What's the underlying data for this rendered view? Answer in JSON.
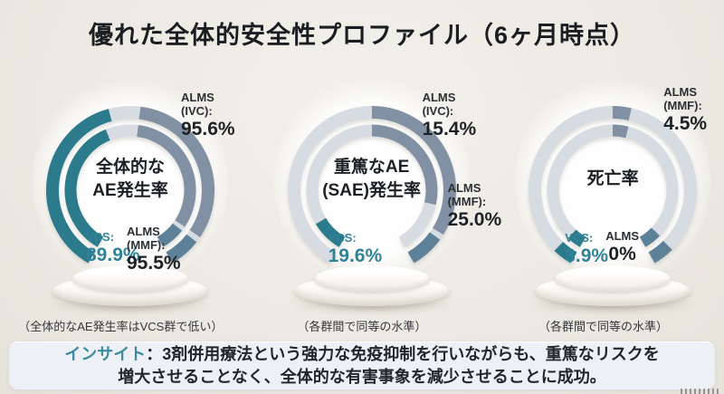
{
  "page": {
    "title": "優れた全体的安全性プロファイル（6ヶ月時点）",
    "background": "#edeae3"
  },
  "colors": {
    "teal": "#2c7b8c",
    "slate": "#8191a3",
    "steel": "#5e819a",
    "track": "#d7dbe2",
    "teal_text": "#2f8398",
    "dark_text": "#1d2126",
    "insight_bg": "#edf0f5"
  },
  "insight": {
    "label": "インサイト",
    "colon": "：",
    "line1": "3剤併用療法という強力な免疫抑制を行いながらも、重篤なリスクを",
    "line2": "増大させることなく、全体的な有害事象を減少させることに成功。"
  },
  "chart_data": [
    {
      "type": "gauge",
      "unit": "%",
      "gauge_span_deg": 300,
      "title": "全体的なAE発生率",
      "center_line1": "全体的な",
      "center_line2": "AE発生率",
      "caption": "（全体的なAE発生率はVCS群で低い）",
      "series": [
        {
          "name": "VCS",
          "value": 89.9
        },
        {
          "name": "ALMS (IVC)",
          "value": 95.6
        },
        {
          "name": "ALMS (MMF)",
          "value": 95.5
        }
      ],
      "labels": [
        {
          "slot": "s-tr",
          "name": "label-alms-ivc",
          "tone": "dark",
          "lines": [
            "ALMS (IVC):"
          ],
          "value": "95.6%"
        },
        {
          "slot": "s-bl",
          "name": "label-vcs",
          "tone": "teal",
          "lines": [
            "VCS:"
          ],
          "value": "89.9%"
        },
        {
          "slot": "s-bm",
          "name": "label-alms-mmf",
          "tone": "dark",
          "lines": [
            "ALMS",
            "(MMF):"
          ],
          "value": "95.5%"
        }
      ],
      "rings": {
        "outer": [
          {
            "from": -150,
            "to": -15,
            "color": "teal"
          },
          {
            "from": -15,
            "to": 7,
            "color": "track"
          },
          {
            "from": 7,
            "to": 124,
            "color": "slate"
          },
          {
            "from": 124,
            "to": 128,
            "color": "track"
          },
          {
            "from": 128,
            "to": 150,
            "color": "steel"
          }
        ],
        "inner": [
          {
            "from": -150,
            "to": -22,
            "color": "teal"
          },
          {
            "from": -22,
            "to": 7,
            "color": "track"
          },
          {
            "from": 7,
            "to": 124,
            "color": "slate"
          },
          {
            "from": 124,
            "to": 128,
            "color": "track"
          },
          {
            "from": 128,
            "to": 150,
            "color": "steel"
          }
        ]
      }
    },
    {
      "type": "gauge",
      "unit": "%",
      "gauge_span_deg": 300,
      "title": "重篤なAE（SAE）発生率",
      "center_line1": "重篤なAE",
      "center_line2": "(SAE)発生率",
      "caption": "（各群間で同等の水準）",
      "series": [
        {
          "name": "VCS",
          "value": 19.6
        },
        {
          "name": "ALMS (IVC)",
          "value": 15.4
        },
        {
          "name": "ALMS (MMF)",
          "value": 25.0
        }
      ],
      "labels": [
        {
          "slot": "s-tr",
          "name": "label-alms-ivc",
          "tone": "dark",
          "lines": [
            "ALMS (IVC):"
          ],
          "value": "15.4%"
        },
        {
          "slot": "s-ro",
          "name": "label-alms-mmf",
          "tone": "dark",
          "lines": [
            "ALMS",
            "(MMF):"
          ],
          "value": "25.0%"
        },
        {
          "slot": "s-bl",
          "name": "label-vcs",
          "tone": "teal",
          "lines": [
            "VCS:"
          ],
          "value": "19.6%"
        }
      ],
      "rings": {
        "outer": [
          {
            "from": -150,
            "to": 0,
            "color": "track"
          },
          {
            "from": 0,
            "to": 122,
            "color": "slate"
          },
          {
            "from": 122,
            "to": 126,
            "color": "track"
          },
          {
            "from": 126,
            "to": 150,
            "color": "steel"
          }
        ],
        "inner": [
          {
            "from": -150,
            "to": -121,
            "color": "teal"
          },
          {
            "from": -121,
            "to": 0,
            "color": "track"
          },
          {
            "from": 0,
            "to": 103,
            "color": "slate"
          },
          {
            "from": 103,
            "to": 150,
            "color": "track"
          }
        ]
      }
    },
    {
      "type": "gauge",
      "unit": "%",
      "gauge_span_deg": 300,
      "title": "死亡率",
      "center_line1": "死亡率",
      "caption": "（各群間で同等の水準）",
      "series": [
        {
          "name": "VCS",
          "value": 3.9
        },
        {
          "name": "ALMS (IVC)",
          "value": 0
        },
        {
          "name": "ALMS (MMF)",
          "value": 4.5
        }
      ],
      "labels": [
        {
          "slot": "s-tr",
          "name": "label-alms-mmf",
          "tone": "dark",
          "lines": [
            "ALMS",
            "(MMF):"
          ],
          "value": "4.5%"
        },
        {
          "slot": "s-bl",
          "name": "label-vcs",
          "tone": "teal",
          "lines": [
            "VCS:"
          ],
          "value": "3.9%"
        },
        {
          "slot": "s-bm",
          "name": "label-alms-ivc",
          "tone": "dark",
          "lines": [
            "ALMS"
          ],
          "value": "0%"
        }
      ],
      "rings": {
        "outer": [
          {
            "from": -150,
            "to": -136,
            "color": "teal"
          },
          {
            "from": -136,
            "to": 0,
            "color": "track"
          },
          {
            "from": 0,
            "to": 13,
            "color": "slate"
          },
          {
            "from": 13,
            "to": 135,
            "color": "track"
          },
          {
            "from": 135,
            "to": 150,
            "color": "steel"
          }
        ],
        "inner": [
          {
            "from": -150,
            "to": -137,
            "color": "teal"
          },
          {
            "from": -137,
            "to": 0,
            "color": "track"
          },
          {
            "from": 0,
            "to": 14,
            "color": "slate"
          },
          {
            "from": 14,
            "to": 134,
            "color": "track"
          },
          {
            "from": 134,
            "to": 150,
            "color": "steel"
          }
        ]
      }
    }
  ]
}
